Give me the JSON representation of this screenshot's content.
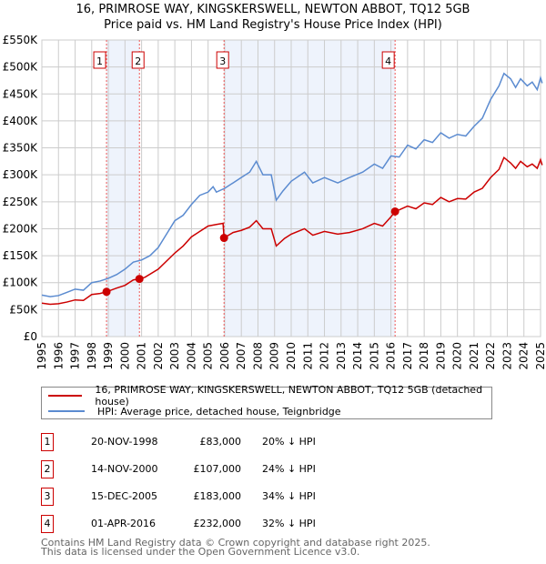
{
  "chart_data": {
    "type": "line",
    "title": "16, PRIMROSE WAY, KINGSKERSWELL, NEWTON ABBOT, TQ12 5GB",
    "subtitle": "Price paid vs. HM Land Registry's House Price Index (HPI)",
    "xlim": [
      1995,
      2025
    ],
    "ylim": [
      0,
      550000
    ],
    "x_ticks": [
      "1995",
      "1996",
      "1997",
      "1998",
      "1999",
      "2000",
      "2001",
      "2002",
      "2003",
      "2004",
      "2005",
      "2006",
      "2007",
      "2008",
      "2009",
      "2010",
      "2011",
      "2012",
      "2013",
      "2014",
      "2015",
      "2016",
      "2017",
      "2018",
      "2019",
      "2020",
      "2021",
      "2022",
      "2023",
      "2024",
      "2025"
    ],
    "y_ticks": [
      {
        "v": 0,
        "l": "£0"
      },
      {
        "v": 50000,
        "l": "£50K"
      },
      {
        "v": 100000,
        "l": "£100K"
      },
      {
        "v": 150000,
        "l": "£150K"
      },
      {
        "v": 200000,
        "l": "£200K"
      },
      {
        "v": 250000,
        "l": "£250K"
      },
      {
        "v": 300000,
        "l": "£300K"
      },
      {
        "v": 350000,
        "l": "£350K"
      },
      {
        "v": 400000,
        "l": "£400K"
      },
      {
        "v": 450000,
        "l": "£450K"
      },
      {
        "v": 500000,
        "l": "£500K"
      },
      {
        "v": 550000,
        "l": "£550K"
      }
    ],
    "grid": true,
    "series": [
      {
        "name": "16, PRIMROSE WAY, KINGSKERSWELL, NEWTON ABBOT, TQ12 5GB (detached house)",
        "color": "#cc0000",
        "points": [
          [
            1995,
            62
          ],
          [
            1995.5,
            60
          ],
          [
            1996,
            61
          ],
          [
            1996.5,
            64
          ],
          [
            1997,
            68
          ],
          [
            1997.5,
            67
          ],
          [
            1998,
            78
          ],
          [
            1998.5,
            80
          ],
          [
            1998.89,
            83
          ],
          [
            1999.5,
            90
          ],
          [
            2000,
            95
          ],
          [
            2000.5,
            105
          ],
          [
            2000.87,
            107
          ],
          [
            2001.2,
            110
          ],
          [
            2002,
            125
          ],
          [
            2003,
            155
          ],
          [
            2003.5,
            168
          ],
          [
            2004,
            185
          ],
          [
            2004.5,
            195
          ],
          [
            2005,
            205
          ],
          [
            2005.5,
            208
          ],
          [
            2005.9,
            210
          ],
          [
            2005.96,
            183
          ],
          [
            2006.5,
            193
          ],
          [
            2007,
            197
          ],
          [
            2007.5,
            203
          ],
          [
            2007.9,
            215
          ],
          [
            2008.3,
            200
          ],
          [
            2008.8,
            200
          ],
          [
            2009.1,
            168
          ],
          [
            2009.6,
            182
          ],
          [
            2010,
            190
          ],
          [
            2010.8,
            200
          ],
          [
            2011.3,
            188
          ],
          [
            2012,
            195
          ],
          [
            2012.8,
            190
          ],
          [
            2013.5,
            193
          ],
          [
            2014.3,
            200
          ],
          [
            2015,
            210
          ],
          [
            2015.5,
            205
          ],
          [
            2016,
            222
          ],
          [
            2016.25,
            232
          ],
          [
            2016.5,
            235
          ],
          [
            2017,
            242
          ],
          [
            2017.5,
            237
          ],
          [
            2018,
            248
          ],
          [
            2018.5,
            245
          ],
          [
            2019,
            258
          ],
          [
            2019.5,
            250
          ],
          [
            2020,
            256
          ],
          [
            2020.5,
            255
          ],
          [
            2021,
            268
          ],
          [
            2021.5,
            275
          ],
          [
            2022,
            295
          ],
          [
            2022.5,
            310
          ],
          [
            2022.8,
            332
          ],
          [
            2023.2,
            322
          ],
          [
            2023.5,
            312
          ],
          [
            2023.8,
            325
          ],
          [
            2024.2,
            315
          ],
          [
            2024.5,
            320
          ],
          [
            2024.8,
            312
          ],
          [
            2025,
            328
          ],
          [
            2025.1,
            318
          ]
        ]
      },
      {
        "name": "HPI: Average price, detached house, Teignbridge",
        "color": "#5b8bd0",
        "points": [
          [
            1995,
            77
          ],
          [
            1995.5,
            74
          ],
          [
            1996,
            76
          ],
          [
            1996.5,
            82
          ],
          [
            1997,
            88
          ],
          [
            1997.5,
            86
          ],
          [
            1998,
            100
          ],
          [
            1998.5,
            103
          ],
          [
            1999,
            108
          ],
          [
            1999.5,
            115
          ],
          [
            2000,
            125
          ],
          [
            2000.5,
            138
          ],
          [
            2001,
            142
          ],
          [
            2001.5,
            150
          ],
          [
            2002,
            165
          ],
          [
            2002.5,
            190
          ],
          [
            2003,
            215
          ],
          [
            2003.5,
            225
          ],
          [
            2004,
            245
          ],
          [
            2004.5,
            262
          ],
          [
            2005,
            268
          ],
          [
            2005.3,
            278
          ],
          [
            2005.5,
            268
          ],
          [
            2006,
            275
          ],
          [
            2006.5,
            285
          ],
          [
            2007,
            295
          ],
          [
            2007.5,
            305
          ],
          [
            2007.9,
            325
          ],
          [
            2008.3,
            300
          ],
          [
            2008.8,
            300
          ],
          [
            2009.1,
            253
          ],
          [
            2009.5,
            270
          ],
          [
            2010,
            288
          ],
          [
            2010.8,
            305
          ],
          [
            2011.3,
            285
          ],
          [
            2012,
            295
          ],
          [
            2012.8,
            285
          ],
          [
            2013.5,
            295
          ],
          [
            2014.3,
            305
          ],
          [
            2015,
            320
          ],
          [
            2015.5,
            312
          ],
          [
            2016,
            335
          ],
          [
            2016.5,
            333
          ],
          [
            2017,
            355
          ],
          [
            2017.5,
            348
          ],
          [
            2018,
            365
          ],
          [
            2018.5,
            360
          ],
          [
            2019,
            378
          ],
          [
            2019.5,
            368
          ],
          [
            2020,
            375
          ],
          [
            2020.5,
            372
          ],
          [
            2021,
            390
          ],
          [
            2021.5,
            405
          ],
          [
            2022,
            440
          ],
          [
            2022.5,
            465
          ],
          [
            2022.8,
            488
          ],
          [
            2023.2,
            478
          ],
          [
            2023.5,
            462
          ],
          [
            2023.8,
            478
          ],
          [
            2024.2,
            465
          ],
          [
            2024.5,
            472
          ],
          [
            2024.8,
            458
          ],
          [
            2025,
            480
          ],
          [
            2025.1,
            470
          ]
        ]
      }
    ],
    "sales": [
      {
        "n": "1",
        "x": 1998.89,
        "y": 83
      },
      {
        "n": "2",
        "x": 2000.87,
        "y": 107
      },
      {
        "n": "3",
        "x": 2005.96,
        "y": 183
      },
      {
        "n": "4",
        "x": 2016.25,
        "y": 232
      }
    ],
    "shaded": [
      [
        1998.89,
        2000.87
      ],
      [
        2005.96,
        2016.25
      ]
    ],
    "y_unit": "thousand GBP"
  },
  "legend": {
    "red": "16, PRIMROSE WAY, KINGSKERSWELL, NEWTON ABBOT, TQ12 5GB (detached house)",
    "blue": "HPI: Average price, detached house, Teignbridge"
  },
  "transactions": [
    {
      "n": "1",
      "date": "20-NOV-1998",
      "price": "£83,000",
      "hpi": "20% ↓ HPI"
    },
    {
      "n": "2",
      "date": "14-NOV-2000",
      "price": "£107,000",
      "hpi": "24% ↓ HPI"
    },
    {
      "n": "3",
      "date": "15-DEC-2005",
      "price": "£183,000",
      "hpi": "34% ↓ HPI"
    },
    {
      "n": "4",
      "date": "01-APR-2016",
      "price": "£232,000",
      "hpi": "32% ↓ HPI"
    }
  ],
  "footer": {
    "line1": "Contains HM Land Registry data © Crown copyright and database right 2025.",
    "line2": "This data is licensed under the Open Government Licence v3.0."
  }
}
